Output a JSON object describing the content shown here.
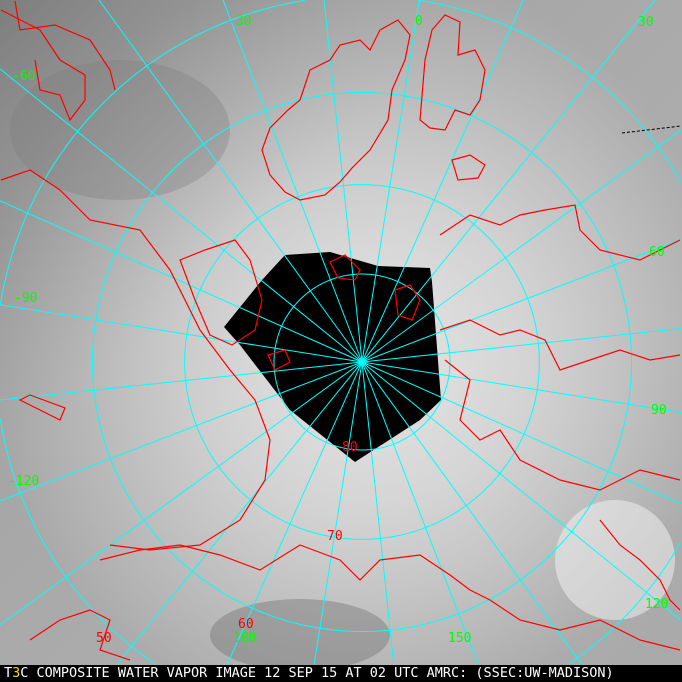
{
  "image": {
    "caption_prefix": "T",
    "caption_marker": "3",
    "caption": "C COMPOSITE WATER VAPOR IMAGE 12 SEP 15 AT 02 UTC AMRC: (SSEC:UW-MADISON)",
    "projection": "polar stereographic, north pole centered",
    "colors": {
      "coastline": "#ff0000",
      "grid": "#00ffff",
      "longitude_labels": "#00ff00",
      "latitude_labels": "#ff0000",
      "no_data": "#000000",
      "marker": "#ffd800"
    }
  },
  "grid": {
    "meridians_deg": [
      0,
      15,
      30,
      45,
      60,
      75,
      90,
      105,
      120,
      135,
      150,
      165,
      180,
      -165,
      -150,
      -135,
      -120,
      -105,
      -90,
      -75,
      -60,
      -45,
      -30,
      -15
    ],
    "parallels_deg": [
      80,
      70,
      60,
      50
    ],
    "longitude_labels": [
      "-60",
      "-30",
      "0",
      "30",
      "60",
      "90",
      "-90",
      "-120",
      "120",
      "150",
      "180"
    ],
    "latitude_labels": [
      "80",
      "70",
      "60",
      "50"
    ]
  }
}
